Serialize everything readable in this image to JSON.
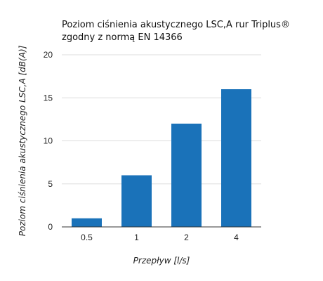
{
  "chart_data": {
    "type": "bar",
    "title_lines": [
      "Poziom ciśnienia akustycznego LSC,A  rur Triplus®",
      "zgodny z normą EN 14366"
    ],
    "categories": [
      "0.5",
      "1",
      "2",
      "4"
    ],
    "values": [
      1,
      6,
      12,
      16
    ],
    "xlabel": "Przepływ [l/s]",
    "ylabel": "Poziom ciśnienia akustycznego LSC,A  [dB(A)]",
    "ylim": [
      0,
      20
    ],
    "yticks": [
      "0",
      "5",
      "10",
      "15",
      "20"
    ],
    "grid": true,
    "legend": "none",
    "bar_color": "#1a72b9"
  }
}
